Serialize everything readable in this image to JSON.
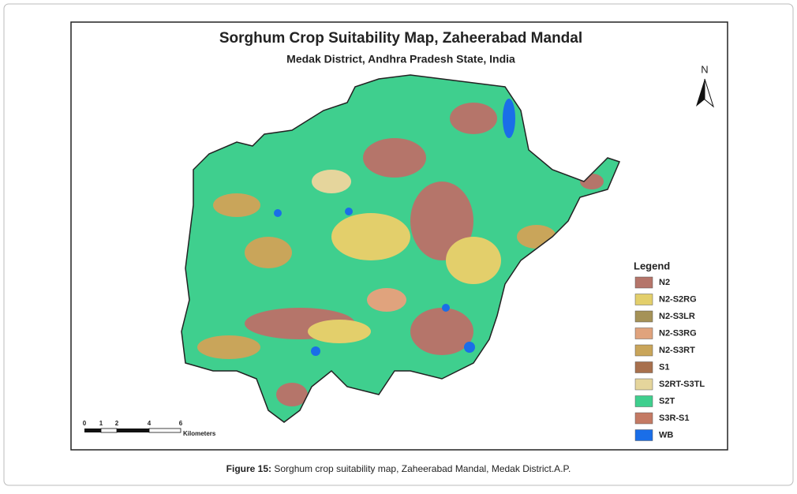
{
  "map": {
    "title": "Sorghum Crop Suitability Map, Zaheerabad Mandal",
    "subtitle": "Medak District, Andhra Pradesh State, India",
    "north": "N",
    "legend": {
      "title": "Legend",
      "items": [
        {
          "label": "N2",
          "color": "#b5756a"
        },
        {
          "label": "N2-S2RG",
          "color": "#e3cf6b"
        },
        {
          "label": "N2-S3LR",
          "color": "#a59257"
        },
        {
          "label": "N2-S3RG",
          "color": "#e0a37d"
        },
        {
          "label": "N2-S3RT",
          "color": "#c9a55a"
        },
        {
          "label": "S1",
          "color": "#a8704d"
        },
        {
          "label": "S2RT-S3TL",
          "color": "#e5d59c"
        },
        {
          "label": "S2T",
          "color": "#3fcf8e"
        },
        {
          "label": "S3R-S1",
          "color": "#c47a64"
        },
        {
          "label": "WB",
          "color": "#1a6ee8"
        }
      ]
    },
    "scale": {
      "ticks": [
        "0",
        "1",
        "2",
        "4",
        "6"
      ],
      "unit": "Kilometers"
    }
  },
  "caption": {
    "label": "Figure 15:",
    "text": "Sorghum crop suitability map, Zaheerabad Mandal, Medak District.A.P."
  }
}
